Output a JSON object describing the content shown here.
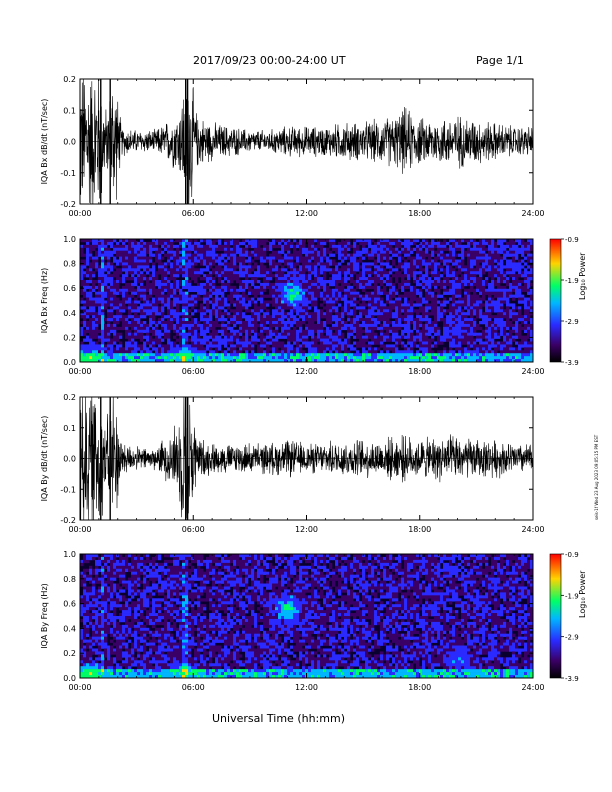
{
  "header": {
    "date_range": "2017/09/23  00:00-24:00 UT",
    "page": "Page 1/1"
  },
  "side_stamp": "seis-1f Wed 23 Aug 2023 09:05:15 PM EST",
  "x_axis": {
    "label": "Universal Time (hh:mm)",
    "ticks": [
      "00:00",
      "06:00",
      "12:00",
      "18:00",
      "24:00"
    ]
  },
  "colorbar": {
    "label": "Log₁₀ Power",
    "ticks": [
      "-0.9",
      "-1.9",
      "-2.9",
      "-3.9"
    ],
    "range": [
      -3.9,
      -0.9
    ],
    "colors": [
      "#000000",
      "#3a0066",
      "#2a2aff",
      "#00b7ff",
      "#00ff66",
      "#ffd400",
      "#ff0000"
    ]
  },
  "chart_data": [
    {
      "type": "line",
      "ylabel": "IQA Bx dB/dt (nT/sec)",
      "xlim": [
        0,
        24
      ],
      "ylim": [
        -0.2,
        0.2
      ],
      "yticks": [
        "0.2",
        "0.1",
        "0.0",
        "-0.1",
        "-0.2"
      ],
      "series": [
        {
          "x": [
            0.2,
            0.6,
            1.0,
            1.4,
            1.8,
            2.2,
            3.0,
            4.0,
            4.8,
            5.3,
            5.5,
            5.8,
            6.2,
            7.0,
            8.0,
            9.0,
            10.0,
            11.0,
            12.0,
            13.0,
            14.0,
            15.0,
            16.0,
            16.8,
            17.2,
            18.0,
            19.0,
            20.0,
            21.0,
            22.0,
            23.0,
            23.9
          ],
          "amplitude": [
            0.2,
            0.2,
            0.2,
            0.08,
            0.2,
            0.04,
            0.03,
            0.03,
            0.06,
            0.09,
            0.16,
            0.2,
            0.07,
            0.05,
            0.04,
            0.03,
            0.03,
            0.04,
            0.04,
            0.04,
            0.05,
            0.05,
            0.06,
            0.07,
            0.09,
            0.06,
            0.06,
            0.07,
            0.06,
            0.05,
            0.04,
            0.04
          ]
        }
      ]
    },
    {
      "type": "heatmap",
      "ylabel": "IQA Bx Freq (Hz)",
      "xlim": [
        0,
        24
      ],
      "ylim": [
        0.0,
        1.0
      ],
      "yticks": [
        "1.0",
        "0.8",
        "0.6",
        "0.4",
        "0.2",
        "0.0"
      ],
      "features": [
        {
          "x": 11.3,
          "y": 0.55,
          "value": -1.9
        },
        {
          "x": 20.0,
          "y": 0.27,
          "value": -2.9
        },
        {
          "x": 5.5,
          "y": 0.05,
          "value": -1.9
        },
        {
          "x": 0.5,
          "y": 0.03,
          "value": -1.5
        }
      ]
    },
    {
      "type": "line",
      "ylabel": "IQA By dB/dt (nT/sec)",
      "xlim": [
        0,
        24
      ],
      "ylim": [
        -0.2,
        0.2
      ],
      "yticks": [
        "0.2",
        "0.1",
        "0.0",
        "-0.1",
        "-0.2"
      ],
      "series": [
        {
          "x": [
            0.2,
            0.6,
            1.0,
            1.4,
            1.8,
            2.2,
            3.0,
            4.0,
            4.8,
            5.3,
            5.5,
            5.8,
            6.2,
            7.0,
            8.0,
            9.0,
            10.0,
            11.0,
            12.0,
            13.0,
            14.0,
            15.0,
            16.0,
            16.8,
            17.2,
            18.0,
            19.0,
            20.0,
            21.0,
            22.0,
            23.0,
            23.9
          ],
          "amplitude": [
            0.2,
            0.2,
            0.2,
            0.1,
            0.2,
            0.05,
            0.03,
            0.03,
            0.07,
            0.12,
            0.2,
            0.2,
            0.06,
            0.04,
            0.04,
            0.04,
            0.04,
            0.05,
            0.04,
            0.04,
            0.05,
            0.05,
            0.05,
            0.06,
            0.06,
            0.05,
            0.06,
            0.06,
            0.05,
            0.05,
            0.04,
            0.04
          ]
        }
      ]
    },
    {
      "type": "heatmap",
      "ylabel": "IQA By Freq (Hz)",
      "xlim": [
        0,
        24
      ],
      "ylim": [
        0.0,
        1.0
      ],
      "yticks": [
        "1.0",
        "0.8",
        "0.6",
        "0.4",
        "0.2",
        "0.0"
      ],
      "features": [
        {
          "x": 11.0,
          "y": 0.55,
          "value": -1.9
        },
        {
          "x": 20.0,
          "y": 0.15,
          "value": -2.5
        },
        {
          "x": 5.5,
          "y": 0.05,
          "value": -1.9
        },
        {
          "x": 0.5,
          "y": 0.04,
          "value": -1.5
        }
      ]
    }
  ]
}
